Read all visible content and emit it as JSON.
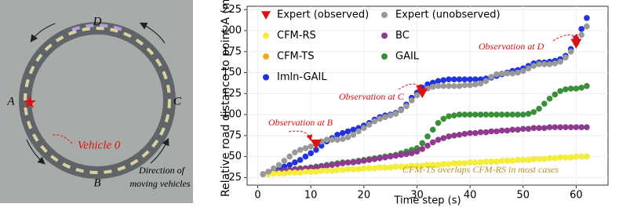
{
  "diagram": {
    "labels": [
      "D",
      "A",
      "C",
      "B"
    ],
    "vehicle": "Vehicle 0",
    "direction": [
      "Direction of",
      "moving vehicles"
    ]
  },
  "chart_data": {
    "type": "scatter",
    "x_label": "Time step (s)",
    "y_label": "Relative road distance to point A (m)",
    "x": [
      1,
      2,
      3,
      4,
      5,
      6,
      7,
      8,
      9,
      10,
      11,
      12,
      13,
      14,
      15,
      16,
      17,
      18,
      19,
      20,
      21,
      22,
      23,
      24,
      25,
      26,
      27,
      28,
      29,
      30,
      31,
      32,
      33,
      34,
      35,
      36,
      37,
      38,
      39,
      40,
      41,
      42,
      43,
      44,
      45,
      46,
      47,
      48,
      49,
      50,
      51,
      52,
      53,
      54,
      55,
      56,
      57,
      58,
      59,
      60,
      61,
      62
    ],
    "series": [
      {
        "name": "Expert (observed)",
        "color": "#e01010",
        "marker": "triangle",
        "x": [
          11,
          31,
          60
        ],
        "values": [
          65,
          126,
          185
        ]
      },
      {
        "name": "Expert (unobserved)",
        "color": "#999999",
        "values": [
          29,
          32,
          36,
          40,
          45,
          50,
          55,
          58,
          60,
          62,
          65,
          68,
          70,
          70,
          70,
          71,
          73,
          76,
          80,
          84,
          88,
          92,
          95,
          97,
          99,
          101,
          105,
          110,
          117,
          123,
          127,
          131,
          133,
          134,
          134,
          134,
          134,
          134,
          135,
          135,
          136,
          137,
          140,
          145,
          148,
          149,
          149,
          149,
          150,
          152,
          155,
          158,
          160,
          160,
          160,
          161,
          163,
          168,
          175,
          185,
          195,
          205
        ]
      },
      {
        "name": "CFM-RS",
        "color": "#f4ee3a",
        "values": [
          29,
          29,
          30,
          30,
          30,
          31,
          31,
          31,
          32,
          32,
          32,
          33,
          33,
          33,
          34,
          34,
          35,
          35,
          35,
          36,
          36,
          36,
          37,
          37,
          37,
          38,
          38,
          38,
          39,
          39,
          39,
          40,
          40,
          40,
          41,
          41,
          42,
          42,
          42,
          43,
          43,
          43,
          44,
          44,
          44,
          45,
          45,
          45,
          46,
          46,
          46,
          47,
          47,
          47,
          48,
          48,
          49,
          49,
          49,
          50,
          50,
          50
        ]
      },
      {
        "name": "BC",
        "color": "#8e3a8e",
        "values": [
          29,
          30,
          31,
          32,
          33,
          34,
          35,
          35,
          36,
          37,
          37,
          38,
          39,
          40,
          41,
          42,
          43,
          43,
          44,
          45,
          46,
          47,
          48,
          49,
          50,
          51,
          52,
          53,
          54,
          56,
          59,
          63,
          67,
          70,
          72,
          74,
          75,
          76,
          77,
          78,
          78,
          79,
          79,
          80,
          80,
          81,
          81,
          82,
          82,
          83,
          83,
          84,
          84,
          84,
          85,
          85,
          85,
          85,
          85,
          85,
          85,
          85
        ]
      },
      {
        "name": "CFM-TS",
        "color": "#f5a623",
        "values": [
          29,
          29,
          30,
          30,
          30,
          31,
          31,
          31,
          32,
          32,
          32,
          33,
          33,
          33,
          34,
          34,
          35,
          35,
          35,
          36,
          36,
          36,
          37,
          37,
          37,
          38,
          38,
          38,
          39,
          39,
          39,
          40,
          40,
          40,
          41,
          41,
          42,
          42,
          42,
          43,
          43,
          43,
          44,
          44,
          44,
          45,
          45,
          45,
          46,
          46,
          46,
          47,
          47,
          47,
          48,
          48,
          49,
          49,
          49,
          50,
          50,
          50
        ]
      },
      {
        "name": "GAIL",
        "color": "#3a8f3a",
        "values": [
          29,
          30,
          31,
          32,
          33,
          34,
          35,
          36,
          36,
          37,
          38,
          39,
          40,
          41,
          42,
          43,
          43,
          44,
          45,
          46,
          47,
          48,
          49,
          50,
          51,
          52,
          54,
          56,
          58,
          60,
          66,
          74,
          82,
          90,
          95,
          98,
          99,
          100,
          100,
          100,
          100,
          100,
          100,
          100,
          100,
          100,
          100,
          100,
          100,
          100,
          101,
          103,
          107,
          113,
          119,
          124,
          128,
          130,
          131,
          131,
          132,
          134
        ]
      },
      {
        "name": "Imln-GAIL",
        "color": "#2233dd",
        "values": [
          29,
          31,
          33,
          35,
          38,
          40,
          43,
          46,
          50,
          54,
          58,
          63,
          68,
          72,
          76,
          78,
          80,
          82,
          84,
          87,
          90,
          94,
          97,
          99,
          100,
          102,
          106,
          112,
          120,
          126,
          132,
          136,
          138,
          140,
          141,
          142,
          142,
          142,
          142,
          142,
          142,
          142,
          143,
          144,
          146,
          148,
          150,
          152,
          153,
          155,
          158,
          161,
          162,
          162,
          163,
          164,
          166,
          170,
          178,
          190,
          202,
          215
        ]
      }
    ],
    "xlim": [
      -2,
      66
    ],
    "xticks": [
      0,
      10,
      20,
      30,
      40,
      50,
      60
    ],
    "ylim": [
      16,
      229
    ],
    "yticks": [
      25,
      50,
      75,
      100,
      125,
      150,
      175,
      200,
      225
    ],
    "grid": true,
    "annotations": [
      "Observation at B",
      "Observation at C",
      "Observation at D",
      "CFM-TS overlaps CFM-RS in most cases"
    ]
  }
}
